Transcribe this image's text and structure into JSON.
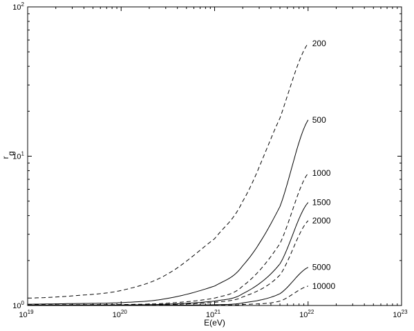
{
  "chart_data": {
    "type": "line",
    "title": "",
    "xlabel": "E(eV)",
    "ylabel_main": "r",
    "ylabel_sub": "g",
    "x_scale": "log",
    "y_scale": "log",
    "xlim": [
      1e+19,
      1e+23
    ],
    "ylim": [
      1,
      100
    ],
    "grid": false,
    "legend": "none",
    "x_ticks": [
      {
        "value": 1e+19,
        "base": "10",
        "exp": "19"
      },
      {
        "value": 1e+20,
        "base": "10",
        "exp": "20"
      },
      {
        "value": 1e+21,
        "base": "10",
        "exp": "21"
      },
      {
        "value": 1e+22,
        "base": "10",
        "exp": "22"
      },
      {
        "value": 1e+23,
        "base": "10",
        "exp": "23"
      }
    ],
    "y_ticks": [
      {
        "value": 1,
        "base": "10",
        "exp": "0"
      },
      {
        "value": 10,
        "base": "10",
        "exp": "1"
      },
      {
        "value": 100,
        "base": "10",
        "exp": "2"
      }
    ],
    "series": [
      {
        "name": "200",
        "style": "dashed",
        "color": "#000000",
        "x": [
          1e+19,
          3e+19,
          1e+20,
          3e+20,
          1e+21,
          2e+21,
          5e+21,
          1e+22
        ],
        "y": [
          1.12,
          1.16,
          1.26,
          1.6,
          2.8,
          5.0,
          18.0,
          57.0
        ]
      },
      {
        "name": "500",
        "style": "solid",
        "color": "#000000",
        "x": [
          1e+19,
          3e+19,
          1e+20,
          3e+20,
          1e+21,
          2e+21,
          5e+21,
          1e+22
        ],
        "y": [
          1.02,
          1.03,
          1.045,
          1.11,
          1.35,
          1.85,
          4.6,
          17.5
        ]
      },
      {
        "name": "1000",
        "style": "dashed",
        "color": "#000000",
        "x": [
          1e+19,
          3e+19,
          1e+20,
          3e+20,
          1e+21,
          2e+21,
          5e+21,
          1e+22
        ],
        "y": [
          1.01,
          1.012,
          1.015,
          1.035,
          1.12,
          1.35,
          2.6,
          7.7
        ]
      },
      {
        "name": "1500",
        "style": "solid",
        "color": "#000000",
        "x": [
          1e+19,
          3e+19,
          1e+20,
          3e+20,
          1e+21,
          2e+21,
          5e+21,
          1e+22
        ],
        "y": [
          1.005,
          1.007,
          1.009,
          1.02,
          1.07,
          1.2,
          1.9,
          4.9
        ]
      },
      {
        "name": "2000",
        "style": "dashed",
        "color": "#000000",
        "x": [
          1e+19,
          3e+19,
          1e+20,
          3e+20,
          1e+21,
          2e+21,
          5e+21,
          1e+22
        ],
        "y": [
          1.004,
          1.005,
          1.006,
          1.013,
          1.05,
          1.14,
          1.6,
          3.7
        ]
      },
      {
        "name": "5000",
        "style": "solid",
        "color": "#000000",
        "x": [
          1e+19,
          1e+20,
          3e+20,
          1e+21,
          2e+21,
          5e+21,
          1e+22
        ],
        "y": [
          1.001,
          1.002,
          1.004,
          1.012,
          1.04,
          1.2,
          1.8
        ]
      },
      {
        "name": "10000",
        "style": "dashed",
        "color": "#000000",
        "x": [
          1e+19,
          1e+20,
          3e+20,
          1e+21,
          2e+21,
          5e+21,
          1e+22
        ],
        "y": [
          1.0005,
          1.001,
          1.002,
          1.005,
          1.015,
          1.07,
          1.35
        ]
      }
    ]
  }
}
